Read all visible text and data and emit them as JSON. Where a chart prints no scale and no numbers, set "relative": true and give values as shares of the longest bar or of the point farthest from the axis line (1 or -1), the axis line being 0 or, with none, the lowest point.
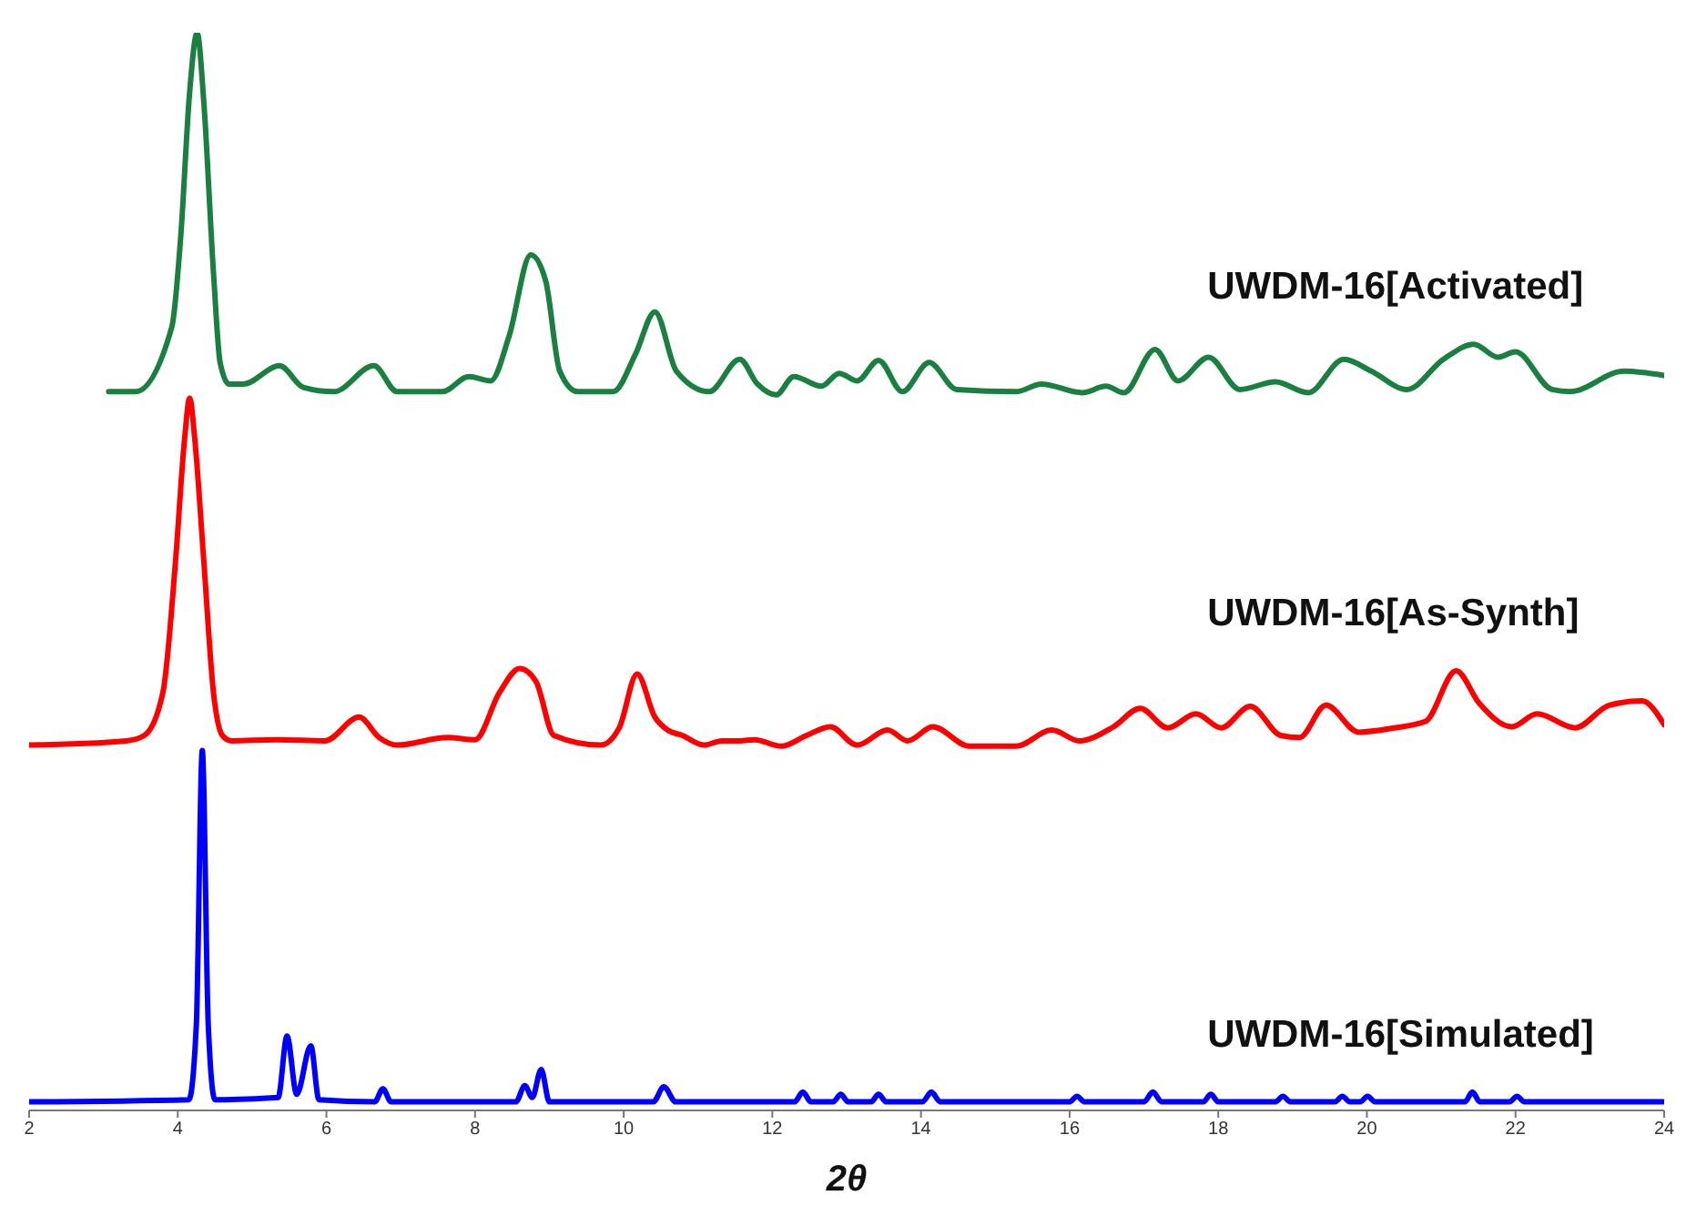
{
  "chart_data": {
    "type": "line",
    "relative": true,
    "xlabel": "2θ",
    "xlim": [
      2,
      24
    ],
    "xticks": [
      2,
      4,
      6,
      8,
      10,
      12,
      14,
      16,
      18,
      20,
      22,
      24
    ],
    "grid": false,
    "legend": false,
    "marker": "none",
    "line_style": "solid",
    "series": [
      {
        "name": "UWDM-16[Activated]",
        "color": "#1a8040",
        "x": [
          3.07,
          3.43,
          3.92,
          4.04,
          4.16,
          4.26,
          4.35,
          4.48,
          4.57,
          4.69,
          4.88,
          5.37,
          5.69,
          6.1,
          6.64,
          6.95,
          7.56,
          7.92,
          8.21,
          8.46,
          8.75,
          8.95,
          9.14,
          9.38,
          9.86,
          10.16,
          10.42,
          10.71,
          11.15,
          11.56,
          11.8,
          12.05,
          12.29,
          12.66,
          12.9,
          13.14,
          13.43,
          13.75,
          14.11,
          14.48,
          15.28,
          15.62,
          16.17,
          16.49,
          16.73,
          17.15,
          17.46,
          17.87,
          18.29,
          18.77,
          19.21,
          19.69,
          20.06,
          20.54,
          21.03,
          21.44,
          21.76,
          22.0,
          22.49,
          22.73,
          23.46,
          24.0
        ],
        "values": [
          0.667,
          0.667,
          0.727,
          0.811,
          0.945,
          1.0,
          0.936,
          0.778,
          0.694,
          0.674,
          0.674,
          0.691,
          0.671,
          0.667,
          0.691,
          0.667,
          0.667,
          0.681,
          0.677,
          0.719,
          0.794,
          0.77,
          0.686,
          0.667,
          0.667,
          0.702,
          0.741,
          0.686,
          0.667,
          0.697,
          0.674,
          0.664,
          0.681,
          0.672,
          0.684,
          0.677,
          0.696,
          0.667,
          0.694,
          0.669,
          0.667,
          0.674,
          0.666,
          0.672,
          0.666,
          0.706,
          0.677,
          0.699,
          0.669,
          0.676,
          0.666,
          0.697,
          0.686,
          0.669,
          0.697,
          0.711,
          0.699,
          0.704,
          0.669,
          0.667,
          0.686,
          0.682
        ]
      },
      {
        "name": "UWDM-16[As-Synth]",
        "color": "#ff0000",
        "x": [
          2.0,
          3.31,
          3.55,
          3.8,
          3.97,
          4.09,
          4.16,
          4.23,
          4.35,
          4.48,
          4.6,
          4.72,
          5.33,
          5.98,
          6.44,
          6.71,
          6.95,
          7.63,
          8.0,
          8.33,
          8.6,
          8.82,
          9.06,
          9.69,
          9.94,
          10.18,
          10.42,
          10.59,
          10.79,
          11.08,
          11.32,
          11.56,
          11.76,
          12.12,
          12.46,
          12.78,
          13.14,
          13.55,
          13.82,
          14.16,
          14.65,
          15.28,
          15.76,
          16.13,
          16.59,
          16.95,
          17.32,
          17.7,
          18.04,
          18.43,
          18.84,
          19.09,
          19.45,
          19.89,
          20.37,
          20.79,
          21.2,
          21.51,
          21.95,
          22.29,
          22.8,
          23.26,
          23.7,
          24.0
        ],
        "values": [
          0.339,
          0.343,
          0.348,
          0.388,
          0.51,
          0.622,
          0.661,
          0.622,
          0.51,
          0.388,
          0.348,
          0.343,
          0.344,
          0.343,
          0.365,
          0.346,
          0.339,
          0.346,
          0.344,
          0.388,
          0.41,
          0.398,
          0.348,
          0.339,
          0.355,
          0.405,
          0.365,
          0.353,
          0.348,
          0.339,
          0.343,
          0.343,
          0.344,
          0.338,
          0.348,
          0.356,
          0.339,
          0.353,
          0.343,
          0.356,
          0.338,
          0.338,
          0.353,
          0.343,
          0.356,
          0.373,
          0.355,
          0.368,
          0.355,
          0.375,
          0.348,
          0.346,
          0.376,
          0.351,
          0.355,
          0.361,
          0.408,
          0.378,
          0.356,
          0.368,
          0.355,
          0.376,
          0.38,
          0.358
        ]
      },
      {
        "name": "UWDM-16[Simulated]",
        "color": "#0000ff",
        "x": [
          2.0,
          4.15,
          4.25,
          4.33,
          4.41,
          4.5,
          5.35,
          5.47,
          5.6,
          5.79,
          5.9,
          6.65,
          6.76,
          6.87,
          8.55,
          8.67,
          8.77,
          8.89,
          9.0,
          10.4,
          10.54,
          10.7,
          12.3,
          12.41,
          12.52,
          12.82,
          12.92,
          13.02,
          13.33,
          13.43,
          13.53,
          14.02,
          14.14,
          14.26,
          16.0,
          16.1,
          16.2,
          17.0,
          17.12,
          17.24,
          17.8,
          17.9,
          18.0,
          18.77,
          18.87,
          18.97,
          19.57,
          19.67,
          19.77,
          19.91,
          20.01,
          20.11,
          21.32,
          21.42,
          21.52,
          21.92,
          22.02,
          22.12,
          24.0
        ],
        "values": [
          0.008,
          0.01,
          0.08,
          0.334,
          0.08,
          0.01,
          0.012,
          0.069,
          0.015,
          0.06,
          0.01,
          0.008,
          0.02,
          0.008,
          0.008,
          0.023,
          0.012,
          0.038,
          0.008,
          0.008,
          0.022,
          0.008,
          0.008,
          0.017,
          0.008,
          0.008,
          0.015,
          0.008,
          0.008,
          0.015,
          0.008,
          0.008,
          0.017,
          0.008,
          0.008,
          0.013,
          0.008,
          0.008,
          0.017,
          0.008,
          0.008,
          0.015,
          0.008,
          0.008,
          0.013,
          0.008,
          0.008,
          0.013,
          0.008,
          0.008,
          0.013,
          0.008,
          0.008,
          0.017,
          0.008,
          0.008,
          0.013,
          0.008,
          0.008
        ]
      }
    ]
  }
}
